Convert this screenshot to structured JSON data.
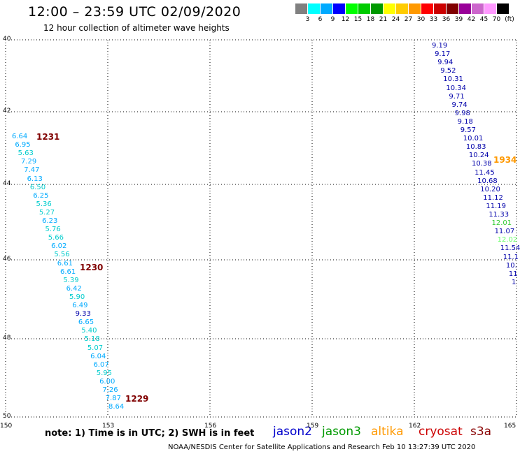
{
  "title": "12:00 – 23:59 UTC 02/09/2020",
  "subtitle": "12 hour collection of altimeter wave heights",
  "color_scale": {
    "unit": "(ft)",
    "swatches": [
      "#808080",
      "#00ffff",
      "#00aaff",
      "#0000ff",
      "#00ff00",
      "#00cc00",
      "#009900",
      "#ffff00",
      "#ffcc00",
      "#ff9900",
      "#ff0000",
      "#cc0000",
      "#800000",
      "#990099",
      "#cc66cc",
      "#ff99ff",
      "#000000"
    ],
    "labels": [
      "3",
      "6",
      "9",
      "12",
      "15",
      "18",
      "21",
      "24",
      "27",
      "30",
      "33",
      "36",
      "39",
      "42",
      "45",
      "70"
    ]
  },
  "map": {
    "lat_labels": [
      "40",
      "42",
      "44",
      "46",
      "48",
      "50"
    ],
    "lon_labels": [
      "150",
      "153",
      "156",
      "159",
      "162",
      "165"
    ]
  },
  "tracks": {
    "left": {
      "values": [
        {
          "t": "6.64",
          "c": "#00aaff"
        },
        {
          "t": "6.95",
          "c": "#00aaff"
        },
        {
          "t": "5.63",
          "c": "#00cccc"
        },
        {
          "t": "7.29",
          "c": "#00aaff"
        },
        {
          "t": "7.47",
          "c": "#00aaff"
        },
        {
          "t": "6.13",
          "c": "#00aaff"
        },
        {
          "t": "6.50",
          "c": "#00cccc"
        },
        {
          "t": "6.25",
          "c": "#00aaff"
        },
        {
          "t": "5.36",
          "c": "#00cccc"
        },
        {
          "t": "5.27",
          "c": "#00cccc"
        },
        {
          "t": "6.23",
          "c": "#00aaff"
        },
        {
          "t": "5.76",
          "c": "#00cccc"
        },
        {
          "t": "5.66",
          "c": "#00cccc"
        },
        {
          "t": "6.02",
          "c": "#00aaff"
        },
        {
          "t": "5.56",
          "c": "#00cccc"
        },
        {
          "t": "6.61",
          "c": "#00aaff"
        },
        {
          "t": "6.61",
          "c": "#00aaff"
        },
        {
          "t": "5.39",
          "c": "#00cccc"
        },
        {
          "t": "6.42",
          "c": "#00aaff"
        },
        {
          "t": "5.90",
          "c": "#00cccc"
        },
        {
          "t": "6.49",
          "c": "#00aaff"
        },
        {
          "t": "9.33",
          "c": "#0000aa"
        },
        {
          "t": "6.65",
          "c": "#00aaff"
        },
        {
          "t": "5.40",
          "c": "#00cccc"
        },
        {
          "t": "5.18",
          "c": "#00cccc"
        },
        {
          "t": "5.07",
          "c": "#00cccc"
        },
        {
          "t": "6.04",
          "c": "#00aaff"
        },
        {
          "t": "6.07",
          "c": "#00aaff"
        },
        {
          "t": "5.95",
          "c": "#00cccc"
        },
        {
          "t": "6.00",
          "c": "#00aaff"
        },
        {
          "t": "7.26",
          "c": "#00aaff"
        },
        {
          "t": "7.87",
          "c": "#00aaff"
        },
        {
          "t": "8.64",
          "c": "#00aaff"
        }
      ],
      "times": [
        "1231",
        "1230",
        "1229"
      ]
    },
    "right": {
      "values": [
        {
          "t": "9.19",
          "c": "#0000aa"
        },
        {
          "t": "9.17",
          "c": "#0000aa"
        },
        {
          "t": "9.94",
          "c": "#0000aa"
        },
        {
          "t": "9.52",
          "c": "#0000aa"
        },
        {
          "t": "10.31",
          "c": "#0000aa"
        },
        {
          "t": "10.34",
          "c": "#0000aa"
        },
        {
          "t": "9.71",
          "c": "#0000aa"
        },
        {
          "t": "9.74",
          "c": "#0000aa"
        },
        {
          "t": "9.98",
          "c": "#0000aa"
        },
        {
          "t": "9.18",
          "c": "#0000aa"
        },
        {
          "t": "9.57",
          "c": "#0000aa"
        },
        {
          "t": "10.01",
          "c": "#0000aa"
        },
        {
          "t": "10.83",
          "c": "#0000aa"
        },
        {
          "t": "10.24",
          "c": "#0000aa"
        },
        {
          "t": "10.38",
          "c": "#0000aa"
        },
        {
          "t": "11.45",
          "c": "#0000aa"
        },
        {
          "t": "10.68",
          "c": "#0000aa"
        },
        {
          "t": "10.20",
          "c": "#0000aa"
        },
        {
          "t": "11.12",
          "c": "#0000aa"
        },
        {
          "t": "11.19",
          "c": "#0000aa"
        },
        {
          "t": "11.33",
          "c": "#0000aa"
        },
        {
          "t": "12.01",
          "c": "#33cc33"
        },
        {
          "t": "11.07",
          "c": "#0000aa"
        },
        {
          "t": "12.02",
          "c": "#66ff66"
        },
        {
          "t": "11.54",
          "c": "#0000aa"
        },
        {
          "t": "11.1",
          "c": "#0000aa"
        },
        {
          "t": "10.",
          "c": "#0000aa"
        },
        {
          "t": "11",
          "c": "#0000aa"
        },
        {
          "t": "1",
          "c": "#0000aa"
        }
      ],
      "times": [
        "1934"
      ]
    }
  },
  "note": "note:  1) Time is in UTC;  2) SWH is in feet",
  "legend": [
    {
      "name": "jason2",
      "color": "#0000cc"
    },
    {
      "name": "jason3",
      "color": "#009900"
    },
    {
      "name": "altika",
      "color": "#ff9900"
    },
    {
      "name": "cryosat",
      "color": "#cc0000"
    },
    {
      "name": "s3a",
      "color": "#880000"
    }
  ],
  "credit": "NOAA/NESDIS Center for Satellite Applications and Research    Feb 10 13:27:39 UTC 2020"
}
